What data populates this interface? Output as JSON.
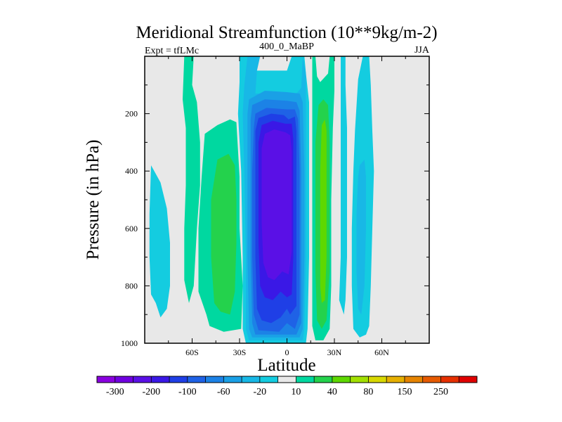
{
  "chart_data": {
    "type": "heatmap",
    "title": "Meridional Streamfunction (10**9kg/m-2)",
    "subtitle_left": "Expt = tfLMc",
    "subtitle_center": "400_0_MaBP",
    "subtitle_right": "JJA",
    "xlabel": "Latitude",
    "ylabel": "Pressure (in hPa)",
    "x_ticks": [
      {
        "value": -60,
        "label": "60S"
      },
      {
        "value": -30,
        "label": "30S"
      },
      {
        "value": 0,
        "label": "0"
      },
      {
        "value": 30,
        "label": "30N"
      },
      {
        "value": 60,
        "label": "60N"
      }
    ],
    "y_ticks": [
      {
        "value": 200,
        "label": "200"
      },
      {
        "value": 400,
        "label": "400"
      },
      {
        "value": 600,
        "label": "600"
      },
      {
        "value": 800,
        "label": "800"
      },
      {
        "value": 1000,
        "label": "1000"
      }
    ],
    "xlim": [
      -90,
      90
    ],
    "ylim": [
      1000,
      0
    ],
    "background_color": "#e8e8e8",
    "colorbar": {
      "levels": [
        -300,
        -250,
        -200,
        -150,
        -100,
        -80,
        -60,
        -40,
        -20,
        -10,
        10,
        20,
        40,
        60,
        80,
        100,
        150,
        200,
        250,
        300
      ],
      "colors": [
        "#8a00e0",
        "#7000e0",
        "#5a10e6",
        "#3a18e6",
        "#1f3fe6",
        "#1f62e6",
        "#1c82e6",
        "#1aa0e6",
        "#18b8e6",
        "#14cce0",
        "#e8e8e8",
        "#00d8a0",
        "#24d24c",
        "#5ed800",
        "#a2e000",
        "#d8d800",
        "#e6b000",
        "#e68400",
        "#e65a00",
        "#e63000",
        "#e00000"
      ],
      "labels": [
        {
          "level": -300,
          "label": "-300"
        },
        {
          "level": -200,
          "label": "-200"
        },
        {
          "level": -100,
          "label": "-100"
        },
        {
          "level": -60,
          "label": "-60"
        },
        {
          "level": -20,
          "label": "-20"
        },
        {
          "level": 10,
          "label": "10"
        },
        {
          "level": 40,
          "label": "40"
        },
        {
          "level": 80,
          "label": "80"
        },
        {
          "level": 150,
          "label": "150"
        },
        {
          "level": 250,
          "label": "250"
        }
      ]
    },
    "regions": [
      {
        "name": "sh-polar-cell",
        "value": -15,
        "color": "#14cce0",
        "points": [
          [
            -86,
            380
          ],
          [
            -83,
            410
          ],
          [
            -80,
            440
          ],
          [
            -76,
            530
          ],
          [
            -74,
            650
          ],
          [
            -74,
            800
          ],
          [
            -76,
            880
          ],
          [
            -80,
            910
          ],
          [
            -83,
            860
          ],
          [
            -86,
            830
          ],
          [
            -87,
            700
          ],
          [
            -87,
            550
          ]
        ]
      },
      {
        "name": "sh-high-cell",
        "value": 15,
        "color": "#00d8a0",
        "points": [
          [
            -65,
            0
          ],
          [
            -59,
            0
          ],
          [
            -60,
            100
          ],
          [
            -57,
            160
          ],
          [
            -55,
            300
          ],
          [
            -55,
            450
          ],
          [
            -57,
            600
          ],
          [
            -59,
            800
          ],
          [
            -62,
            860
          ],
          [
            -65,
            780
          ],
          [
            -65,
            600
          ],
          [
            -64,
            450
          ],
          [
            -64,
            250
          ],
          [
            -66,
            150
          ]
        ]
      },
      {
        "name": "sh-mid-cell-outer",
        "value": 15,
        "color": "#00d8a0",
        "points": [
          [
            -52,
            270
          ],
          [
            -44,
            240
          ],
          [
            -36,
            220
          ],
          [
            -32,
            230
          ],
          [
            -30,
            420
          ],
          [
            -30,
            600
          ],
          [
            -28,
            800
          ],
          [
            -29,
            950
          ],
          [
            -40,
            960
          ],
          [
            -49,
            940
          ],
          [
            -51,
            900
          ],
          [
            -56,
            820
          ],
          [
            -56,
            600
          ],
          [
            -54,
            420
          ]
        ]
      },
      {
        "name": "sh-mid-cell-inner",
        "value": 30,
        "color": "#24d24c",
        "points": [
          [
            -44,
            360
          ],
          [
            -37,
            340
          ],
          [
            -33,
            380
          ],
          [
            -32,
            500
          ],
          [
            -32,
            650
          ],
          [
            -33,
            820
          ],
          [
            -36,
            900
          ],
          [
            -42,
            890
          ],
          [
            -46,
            860
          ],
          [
            -48,
            700
          ],
          [
            -48,
            500
          ]
        ]
      },
      {
        "name": "band-10",
        "value": -15,
        "color": "#14cce0",
        "points": [
          [
            -30,
            0
          ],
          [
            -25,
            0
          ],
          [
            -24,
            50
          ],
          [
            0,
            50
          ],
          [
            3,
            0
          ],
          [
            11,
            0
          ],
          [
            12,
            60
          ],
          [
            14,
            160
          ],
          [
            14,
            400
          ],
          [
            14,
            700
          ],
          [
            13,
            950
          ],
          [
            12,
            1000
          ],
          [
            -26,
            1000
          ],
          [
            -28,
            950
          ],
          [
            -28,
            700
          ],
          [
            -29,
            400
          ],
          [
            -31,
            200
          ],
          [
            -30,
            90
          ]
        ]
      },
      {
        "name": "band-20",
        "value": -30,
        "color": "#18b8e6",
        "points": [
          [
            -25,
            0
          ],
          [
            -17,
            0
          ],
          [
            -19,
            50
          ],
          [
            -20,
            130
          ],
          [
            6,
            130
          ],
          [
            9,
            110
          ],
          [
            10,
            0
          ],
          [
            12,
            60
          ],
          [
            12,
            160
          ],
          [
            12,
            400
          ],
          [
            12,
            700
          ],
          [
            11,
            950
          ],
          [
            10,
            990
          ],
          [
            -24,
            990
          ],
          [
            -26,
            950
          ],
          [
            -26,
            700
          ],
          [
            -27,
            400
          ],
          [
            -28,
            200
          ],
          [
            -27,
            100
          ]
        ]
      },
      {
        "name": "band-40",
        "value": -50,
        "color": "#1aa0e6",
        "points": [
          [
            -24,
            150
          ],
          [
            -14,
            120
          ],
          [
            0,
            125
          ],
          [
            8,
            130
          ],
          [
            10,
            160
          ],
          [
            11,
            400
          ],
          [
            11,
            700
          ],
          [
            10,
            950
          ],
          [
            8,
            980
          ],
          [
            -22,
            980
          ],
          [
            -24,
            950
          ],
          [
            -25,
            700
          ],
          [
            -25,
            400
          ],
          [
            -25,
            200
          ]
        ]
      },
      {
        "name": "band-60",
        "value": -70,
        "color": "#1c82e6",
        "points": [
          [
            -22,
            170
          ],
          [
            -14,
            150
          ],
          [
            0,
            155
          ],
          [
            6,
            160
          ],
          [
            8,
            190
          ],
          [
            9,
            400
          ],
          [
            9,
            700
          ],
          [
            9,
            930
          ],
          [
            6,
            970
          ],
          [
            -20,
            970
          ],
          [
            -22,
            930
          ],
          [
            -23,
            700
          ],
          [
            -23,
            400
          ],
          [
            -23,
            220
          ]
        ]
      },
      {
        "name": "band-80",
        "value": -90,
        "color": "#1f62e6",
        "points": [
          [
            -20,
            200
          ],
          [
            -13,
            180
          ],
          [
            0,
            185
          ],
          [
            5,
            185
          ],
          [
            7,
            220
          ],
          [
            8,
            400
          ],
          [
            8,
            700
          ],
          [
            8,
            900
          ],
          [
            5,
            950
          ],
          [
            0,
            930
          ],
          [
            -5,
            960
          ],
          [
            -18,
            955
          ],
          [
            -21,
            900
          ],
          [
            -22,
            700
          ],
          [
            -22,
            400
          ],
          [
            -21,
            250
          ]
        ]
      },
      {
        "name": "band-100",
        "value": -120,
        "color": "#1f3fe6",
        "points": [
          [
            -18,
            215
          ],
          [
            -10,
            200
          ],
          [
            -2,
            205
          ],
          [
            1,
            220
          ],
          [
            5,
            210
          ],
          [
            6,
            260
          ],
          [
            6,
            400
          ],
          [
            6,
            700
          ],
          [
            6,
            870
          ],
          [
            2,
            900
          ],
          [
            0,
            880
          ],
          [
            -4,
            910
          ],
          [
            -10,
            930
          ],
          [
            -16,
            920
          ],
          [
            -19,
            880
          ],
          [
            -20,
            700
          ],
          [
            -20,
            400
          ],
          [
            -20,
            260
          ]
        ]
      },
      {
        "name": "band-150",
        "value": -170,
        "color": "#3a18e6",
        "points": [
          [
            -16,
            240
          ],
          [
            -9,
            225
          ],
          [
            -1,
            235
          ],
          [
            3,
            235
          ],
          [
            4,
            290
          ],
          [
            4,
            500
          ],
          [
            4,
            700
          ],
          [
            3,
            830
          ],
          [
            0,
            840
          ],
          [
            -4,
            820
          ],
          [
            -9,
            850
          ],
          [
            -14,
            840
          ],
          [
            -17,
            800
          ],
          [
            -18,
            650
          ],
          [
            -18,
            450
          ],
          [
            -18,
            300
          ]
        ]
      },
      {
        "name": "band-200",
        "value": -220,
        "color": "#5a10e6",
        "points": [
          [
            -14,
            270
          ],
          [
            -8,
            255
          ],
          [
            -1,
            265
          ],
          [
            2,
            275
          ],
          [
            3,
            330
          ],
          [
            3,
            500
          ],
          [
            3,
            680
          ],
          [
            1,
            760
          ],
          [
            -3,
            750
          ],
          [
            -8,
            780
          ],
          [
            -12,
            770
          ],
          [
            -15,
            720
          ],
          [
            -16,
            580
          ],
          [
            -16,
            420
          ],
          [
            -16,
            320
          ]
        ]
      },
      {
        "name": "nh-cell-outer",
        "value": 15,
        "color": "#00d8a0",
        "points": [
          [
            16,
            0
          ],
          [
            18,
            0
          ],
          [
            19,
            70
          ],
          [
            21,
            90
          ],
          [
            26,
            60
          ],
          [
            27,
            0
          ],
          [
            30,
            0
          ],
          [
            30,
            120
          ],
          [
            29,
            250
          ],
          [
            28,
            500
          ],
          [
            28,
            800
          ],
          [
            27,
            950
          ],
          [
            23,
            990
          ],
          [
            18,
            990
          ],
          [
            16,
            940
          ],
          [
            16,
            700
          ],
          [
            16,
            400
          ],
          [
            16,
            150
          ]
        ]
      },
      {
        "name": "nh-cell-inner",
        "value": 30,
        "color": "#24d24c",
        "points": [
          [
            20,
            170
          ],
          [
            23,
            150
          ],
          [
            26,
            170
          ],
          [
            27,
            300
          ],
          [
            27,
            500
          ],
          [
            27,
            750
          ],
          [
            25,
            920
          ],
          [
            22,
            950
          ],
          [
            19,
            920
          ],
          [
            18,
            750
          ],
          [
            18,
            500
          ],
          [
            18,
            300
          ]
        ]
      },
      {
        "name": "nh-cell-core",
        "value": 60,
        "color": "#5ed800",
        "points": [
          [
            22,
            240
          ],
          [
            24,
            220
          ],
          [
            25,
            260
          ],
          [
            25,
            450
          ],
          [
            25,
            700
          ],
          [
            24,
            850
          ],
          [
            22,
            860
          ],
          [
            21,
            800
          ],
          [
            21,
            600
          ],
          [
            21,
            400
          ]
        ]
      },
      {
        "name": "nh-cold-band",
        "value": -15,
        "color": "#14cce0",
        "points": [
          [
            34,
            0
          ],
          [
            37,
            0
          ],
          [
            37,
            100
          ],
          [
            38,
            250
          ],
          [
            38,
            500
          ],
          [
            38,
            700
          ],
          [
            37,
            850
          ],
          [
            36,
            900
          ],
          [
            33,
            850
          ],
          [
            34,
            700
          ],
          [
            34,
            500
          ],
          [
            34,
            300
          ],
          [
            34,
            150
          ]
        ]
      },
      {
        "name": "nh-polar-outer",
        "value": -15,
        "color": "#14cce0",
        "points": [
          [
            45,
            80
          ],
          [
            48,
            0
          ],
          [
            52,
            0
          ],
          [
            53,
            100
          ],
          [
            54,
            260
          ],
          [
            55,
            400
          ],
          [
            54,
            600
          ],
          [
            53,
            800
          ],
          [
            52,
            940
          ],
          [
            50,
            970
          ],
          [
            46,
            980
          ],
          [
            42,
            950
          ],
          [
            41,
            800
          ],
          [
            41,
            600
          ],
          [
            42,
            400
          ],
          [
            43,
            260
          ]
        ]
      },
      {
        "name": "nh-polar-inner",
        "value": -30,
        "color": "#18b8e6",
        "points": [
          [
            46,
            380
          ],
          [
            49,
            360
          ],
          [
            50,
            420
          ],
          [
            50,
            600
          ],
          [
            49,
            800
          ],
          [
            47,
            900
          ],
          [
            45,
            880
          ],
          [
            44,
            750
          ],
          [
            44,
            550
          ],
          [
            45,
            420
          ]
        ]
      }
    ]
  }
}
